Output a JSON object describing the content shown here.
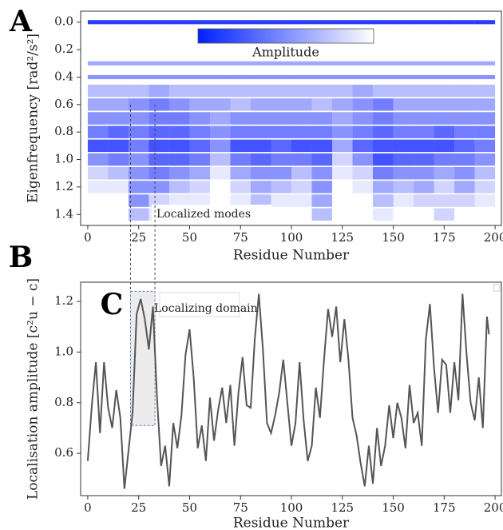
{
  "chart_data": [
    {
      "type": "heatmap",
      "panel_label": "A",
      "xlabel": "Residue Number",
      "ylabel": "Eigenfrequency [rad²/s²]",
      "colorbar_label": "Amplitude",
      "annotation": "Localized modes",
      "color": "#1428ff",
      "x": [
        0,
        10,
        20,
        30,
        40,
        50,
        60,
        70,
        80,
        90,
        100,
        110,
        120,
        130,
        140,
        150,
        160,
        170,
        180,
        190
      ],
      "y": [
        0.0,
        0.3,
        0.4,
        0.5,
        0.6,
        0.7,
        0.8,
        0.9,
        1.0,
        1.1,
        1.2,
        1.3,
        1.4
      ],
      "z": [
        [
          0.9,
          0.9,
          0.9,
          0.9,
          0.9,
          0.9,
          0.9,
          0.9,
          0.9,
          0.9,
          0.9,
          0.9,
          0.9,
          0.9,
          0.9,
          0.9,
          0.9,
          0.9,
          0.9,
          0.9
        ],
        [
          0.4,
          0.4,
          0.4,
          0.4,
          0.4,
          0.4,
          0.4,
          0.4,
          0.4,
          0.4,
          0.4,
          0.4,
          0.4,
          0.4,
          0.4,
          0.4,
          0.4,
          0.4,
          0.4,
          0.4
        ],
        [
          0.5,
          0.5,
          0.5,
          0.5,
          0.5,
          0.5,
          0.5,
          0.5,
          0.5,
          0.5,
          0.5,
          0.5,
          0.5,
          0.5,
          0.5,
          0.5,
          0.5,
          0.5,
          0.5,
          0.5
        ],
        [
          0.3,
          0.3,
          0.3,
          0.4,
          0.3,
          0.3,
          0.3,
          0.3,
          0.3,
          0.3,
          0.3,
          0.3,
          0.3,
          0.4,
          0.3,
          0.3,
          0.3,
          0.3,
          0.3,
          0.3
        ],
        [
          0.4,
          0.4,
          0.5,
          0.6,
          0.5,
          0.4,
          0.4,
          0.3,
          0.4,
          0.4,
          0.4,
          0.3,
          0.4,
          0.5,
          0.6,
          0.4,
          0.4,
          0.4,
          0.4,
          0.4
        ],
        [
          0.5,
          0.5,
          0.5,
          0.6,
          0.6,
          0.5,
          0.4,
          0.5,
          0.5,
          0.5,
          0.5,
          0.5,
          0.4,
          0.5,
          0.6,
          0.5,
          0.5,
          0.5,
          0.5,
          0.5
        ],
        [
          0.6,
          0.7,
          0.6,
          0.7,
          0.7,
          0.6,
          0.5,
          0.6,
          0.6,
          0.6,
          0.6,
          0.6,
          0.5,
          0.6,
          0.7,
          0.6,
          0.6,
          0.7,
          0.6,
          0.6
        ],
        [
          0.8,
          0.8,
          0.6,
          0.8,
          0.8,
          0.7,
          0.5,
          0.8,
          0.8,
          0.7,
          0.8,
          0.8,
          0.4,
          0.7,
          0.8,
          0.8,
          0.8,
          0.8,
          0.7,
          0.6
        ],
        [
          0.5,
          0.6,
          0.5,
          0.7,
          0.7,
          0.6,
          0.3,
          0.6,
          0.7,
          0.6,
          0.6,
          0.7,
          0.2,
          0.5,
          0.8,
          0.7,
          0.7,
          0.6,
          0.6,
          0.5
        ],
        [
          0.2,
          0.3,
          0.5,
          0.6,
          0.5,
          0.4,
          0.1,
          0.4,
          0.5,
          0.5,
          0.3,
          0.5,
          0.1,
          0.2,
          0.6,
          0.5,
          0.5,
          0.4,
          0.5,
          0.3
        ],
        [
          0.1,
          0.1,
          0.5,
          0.5,
          0.3,
          0.2,
          0.0,
          0.2,
          0.4,
          0.3,
          0.2,
          0.5,
          0.0,
          0.1,
          0.4,
          0.3,
          0.4,
          0.2,
          0.4,
          0.2
        ],
        [
          0.0,
          0.0,
          0.5,
          0.2,
          0.1,
          0.1,
          0.0,
          0.1,
          0.3,
          0.1,
          0.1,
          0.4,
          0.0,
          0.0,
          0.3,
          0.1,
          0.2,
          0.2,
          0.2,
          0.1
        ],
        [
          0.0,
          0.0,
          0.3,
          0.1,
          0.0,
          0.0,
          0.0,
          0.0,
          0.2,
          0.0,
          0.0,
          0.3,
          0.0,
          0.0,
          0.1,
          0.0,
          0.0,
          0.2,
          0.0,
          0.0
        ]
      ],
      "xlim": [
        -3.5,
        203.1
      ],
      "ylim": [
        -0.08,
        1.48
      ],
      "y_inverted": true,
      "xticks": [
        0,
        25,
        50,
        75,
        100,
        125,
        150,
        175,
        200
      ],
      "yticks": [
        {
          "value": 0,
          "label": "0.0"
        },
        0.2,
        0.4,
        0.6,
        0.8,
        {
          "value": 1,
          "label": "1.0"
        },
        1.2,
        1.4
      ]
    },
    {
      "type": "line",
      "panel_label": "B",
      "inset_label": "C",
      "xlabel": "Residue Number",
      "ylabel": "Localisation amplitude [c²u − c]",
      "annotation": "Localizing domain",
      "color": "#555555",
      "highlight": {
        "x": [
          21,
          33
        ],
        "y": [
          0.71,
          1.24
        ]
      },
      "x": [
        0,
        2,
        4,
        6,
        8,
        10,
        12,
        14,
        16,
        18,
        20,
        22,
        24,
        26,
        28,
        30,
        32,
        34,
        36,
        38,
        40,
        42,
        44,
        46,
        48,
        50,
        52,
        54,
        56,
        58,
        60,
        62,
        64,
        66,
        68,
        70,
        72,
        74,
        76,
        78,
        80,
        82,
        84,
        86,
        88,
        90,
        92,
        94,
        96,
        98,
        100,
        102,
        104,
        106,
        108,
        110,
        112,
        114,
        116,
        118,
        120,
        122,
        124,
        126,
        128,
        130,
        132,
        134,
        136,
        138,
        140,
        142,
        144,
        146,
        148,
        150,
        152,
        154,
        156,
        158,
        160,
        162,
        164,
        166,
        168,
        170,
        172,
        174,
        176,
        178,
        180,
        182,
        184,
        186,
        188,
        190,
        192,
        194,
        196,
        197
      ],
      "values": [
        0.57,
        0.79,
        0.96,
        0.68,
        0.96,
        0.78,
        0.7,
        0.85,
        0.74,
        0.46,
        0.61,
        0.76,
        1.15,
        1.21,
        1.13,
        1.01,
        1.18,
        0.82,
        0.55,
        0.63,
        0.47,
        0.72,
        0.62,
        0.75,
        0.99,
        1.09,
        0.9,
        0.62,
        0.71,
        0.57,
        0.82,
        0.65,
        0.77,
        0.86,
        0.72,
        0.87,
        0.63,
        0.84,
        0.98,
        0.79,
        0.78,
        1.05,
        1.23,
        1.01,
        0.72,
        0.68,
        0.75,
        0.84,
        0.97,
        0.8,
        0.63,
        0.72,
        0.96,
        0.73,
        0.57,
        0.63,
        0.86,
        0.74,
        0.97,
        1.17,
        1.06,
        1.18,
        0.96,
        1.13,
        0.97,
        0.74,
        0.67,
        0.56,
        0.47,
        0.63,
        0.48,
        0.7,
        0.55,
        0.63,
        0.79,
        0.66,
        0.8,
        0.74,
        0.62,
        0.87,
        0.72,
        0.76,
        0.63,
        1.05,
        1.19,
        0.94,
        0.76,
        0.97,
        0.95,
        0.76,
        0.96,
        0.81,
        1.23,
        0.99,
        0.8,
        0.73,
        0.9,
        0.7,
        1.14,
        1.07
      ],
      "xlim": [
        -3.5,
        203.1
      ],
      "ylim": [
        0.433,
        1.276
      ],
      "xticks": [
        0,
        25,
        50,
        75,
        100,
        125,
        150,
        175,
        200
      ],
      "yticks": [
        0.6,
        0.8,
        {
          "value": 1,
          "label": "1.0"
        },
        1.2
      ]
    }
  ]
}
